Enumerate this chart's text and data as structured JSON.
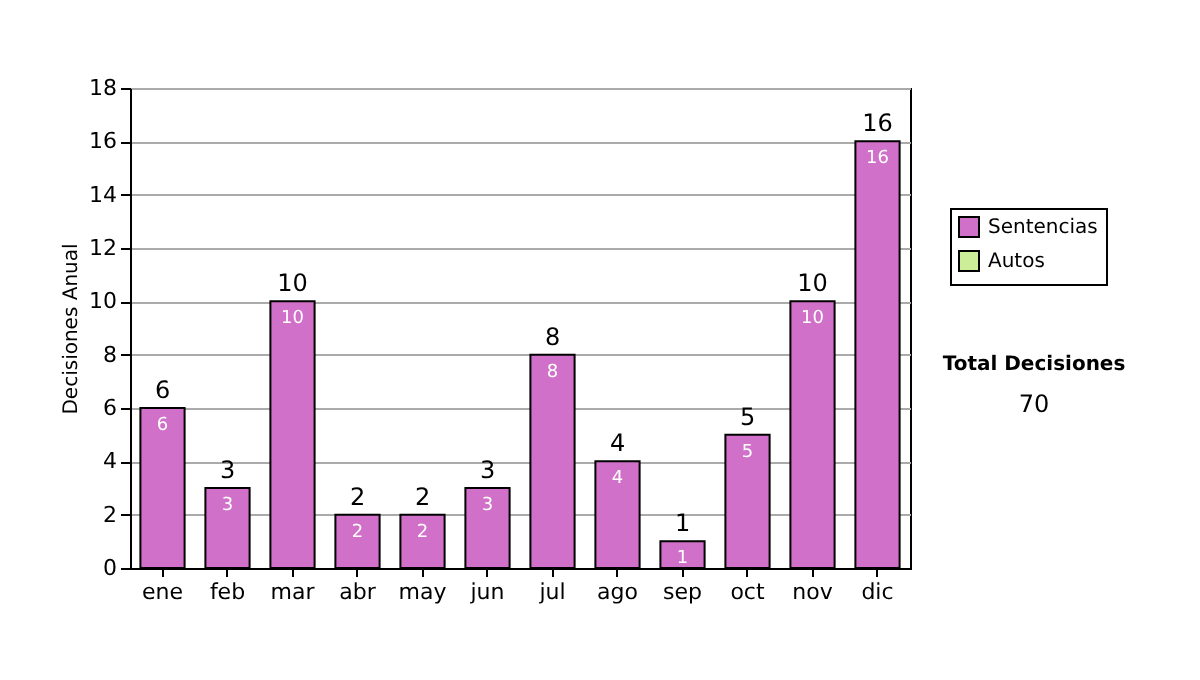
{
  "chart_data": {
    "type": "bar",
    "ylabel": "Decisiones Anual",
    "categories": [
      "ene",
      "feb",
      "mar",
      "abr",
      "may",
      "jun",
      "jul",
      "ago",
      "sep",
      "oct",
      "nov",
      "dic"
    ],
    "series": [
      {
        "name": "Sentencias",
        "color": "#d070c8",
        "values": [
          6,
          3,
          10,
          2,
          2,
          3,
          8,
          4,
          1,
          5,
          10,
          16
        ],
        "value_labels": [
          "6",
          "3",
          "10",
          "2",
          "2",
          "3",
          "8",
          "4",
          "1",
          "5",
          "10",
          "16"
        ]
      },
      {
        "name": "Autos",
        "color": "#ccee99",
        "values": [
          null,
          null,
          null,
          null,
          null,
          null,
          null,
          null,
          null,
          null,
          null,
          null
        ]
      }
    ],
    "stacked": true,
    "totals": [
      "6",
      "3",
      "10",
      "2",
      "2",
      "3",
      "8",
      "4",
      "1",
      "5",
      "10",
      "16"
    ],
    "ylim": [
      0,
      18
    ],
    "yticks": [
      0,
      2,
      4,
      6,
      8,
      10,
      12,
      14,
      16,
      18
    ],
    "grid": "y",
    "legend": "top right",
    "annotations": [
      "Total Decisiones",
      "70"
    ]
  }
}
